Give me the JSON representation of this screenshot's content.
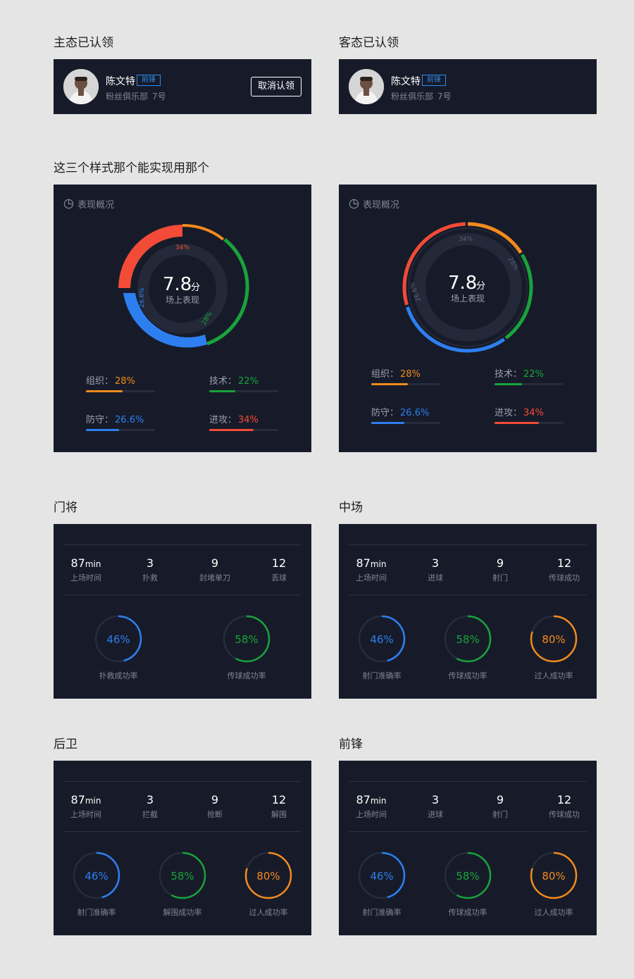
{
  "sections": {
    "host_claimed": "主态已认领",
    "guest_claimed": "客态已认领",
    "styles_note": "这三个样式那个能实现用那个",
    "goalkeeper": "门将",
    "midfield": "中场",
    "defender": "后卫",
    "forward": "前锋"
  },
  "player": {
    "name": "陈文特",
    "position": "前锋",
    "club": "粉丝俱乐部",
    "number": "7号",
    "cancel_claim_label": "取消认领"
  },
  "overview": {
    "title": "表现概况",
    "score": "7.8",
    "score_unit": "分",
    "score_label": "场上表现",
    "stats": [
      {
        "label": "组织：",
        "value": "28%",
        "fraction": 0.28,
        "color": "#f28a1e"
      },
      {
        "label": "技术：",
        "value": "22%",
        "fraction": 0.22,
        "color": "#18a33b"
      },
      {
        "label": "防守：",
        "value": "26.6%",
        "fraction": 0.266,
        "color": "#2d7ff0"
      },
      {
        "label": "进攻：",
        "value": "34%",
        "fraction": 0.34,
        "color": "#f24b37"
      }
    ],
    "ring_labels": {
      "attack": "34%",
      "tech": "28%",
      "defense": "26.6%"
    }
  },
  "colors": {
    "orange": "#f28a1e",
    "green": "#18a33b",
    "blue": "#2d7ff0",
    "red": "#f24b37",
    "panel": "#171b29",
    "track": "#262c3d"
  },
  "goalkeeper_panel": {
    "stats": [
      {
        "value": "87",
        "unit": "min",
        "label": "上场时间"
      },
      {
        "value": "3",
        "unit": "",
        "label": "扑救"
      },
      {
        "value": "9",
        "unit": "",
        "label": "封堵单刀"
      },
      {
        "value": "12",
        "unit": "",
        "label": "丢球"
      }
    ],
    "rings": [
      {
        "value": "46%",
        "fraction": 0.46,
        "color": "#2d7ff0",
        "label": "扑救成功率"
      },
      {
        "value": "58%",
        "fraction": 0.58,
        "color": "#18a33b",
        "label": "传球成功率"
      }
    ]
  },
  "midfield_panel": {
    "stats": [
      {
        "value": "87",
        "unit": "min",
        "label": "上场时间"
      },
      {
        "value": "3",
        "unit": "",
        "label": "进球"
      },
      {
        "value": "9",
        "unit": "",
        "label": "射门"
      },
      {
        "value": "12",
        "unit": "",
        "label": "传球成功"
      }
    ],
    "rings": [
      {
        "value": "46%",
        "fraction": 0.46,
        "color": "#2d7ff0",
        "label": "射门准确率"
      },
      {
        "value": "58%",
        "fraction": 0.58,
        "color": "#18a33b",
        "label": "传球成功率"
      },
      {
        "value": "80%",
        "fraction": 0.8,
        "color": "#f28a1e",
        "label": "过人成功率"
      }
    ]
  },
  "defender_panel": {
    "stats": [
      {
        "value": "87",
        "unit": "min",
        "label": "上场时间"
      },
      {
        "value": "3",
        "unit": "",
        "label": "拦截"
      },
      {
        "value": "9",
        "unit": "",
        "label": "抢断"
      },
      {
        "value": "12",
        "unit": "",
        "label": "解围"
      }
    ],
    "rings": [
      {
        "value": "46%",
        "fraction": 0.46,
        "color": "#2d7ff0",
        "label": "射门准确率"
      },
      {
        "value": "58%",
        "fraction": 0.58,
        "color": "#18a33b",
        "label": "解围成功率"
      },
      {
        "value": "80%",
        "fraction": 0.8,
        "color": "#f28a1e",
        "label": "过人成功率"
      }
    ]
  },
  "forward_panel": {
    "stats": [
      {
        "value": "87",
        "unit": "min",
        "label": "上场时间"
      },
      {
        "value": "3",
        "unit": "",
        "label": "进球"
      },
      {
        "value": "9",
        "unit": "",
        "label": "射门"
      },
      {
        "value": "12",
        "unit": "",
        "label": "传球成功"
      }
    ],
    "rings": [
      {
        "value": "46%",
        "fraction": 0.46,
        "color": "#2d7ff0",
        "label": "射门准确率"
      },
      {
        "value": "58%",
        "fraction": 0.58,
        "color": "#18a33b",
        "label": "传球成功率"
      },
      {
        "value": "80%",
        "fraction": 0.8,
        "color": "#f28a1e",
        "label": "过人成功率"
      }
    ]
  }
}
